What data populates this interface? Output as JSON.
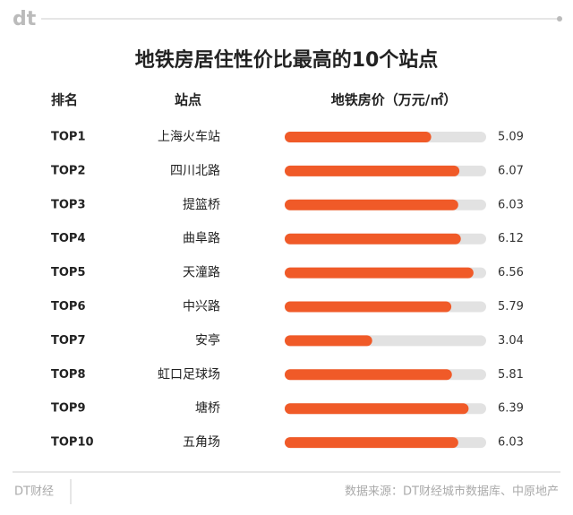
{
  "chart_data": {
    "type": "bar",
    "logo": "dt",
    "title": "地铁房居住性价比最高的10个站点",
    "headers": [
      "排名",
      "站点",
      "地铁房价（万元/㎡）"
    ],
    "ranks": [
      "TOP1",
      "TOP2",
      "TOP3",
      "TOP4",
      "TOP5",
      "TOP6",
      "TOP7",
      "TOP8",
      "TOP9",
      "TOP10"
    ],
    "categories": [
      "上海火车站",
      "四川北路",
      "提篮桥",
      "曲阜路",
      "天潼路",
      "中兴路",
      "安亭",
      "虹口足球场",
      "塘桥",
      "五角场"
    ],
    "values": [
      5.09,
      6.07,
      6.03,
      6.12,
      6.56,
      5.79,
      3.04,
      5.81,
      6.39,
      6.03
    ],
    "xlim": [
      0,
      7
    ],
    "color": "#f05a28",
    "track_color": "#e2e2e2",
    "footer_left": "DT财经",
    "source": "数据来源：DT财经城市数据库、中原地产"
  }
}
